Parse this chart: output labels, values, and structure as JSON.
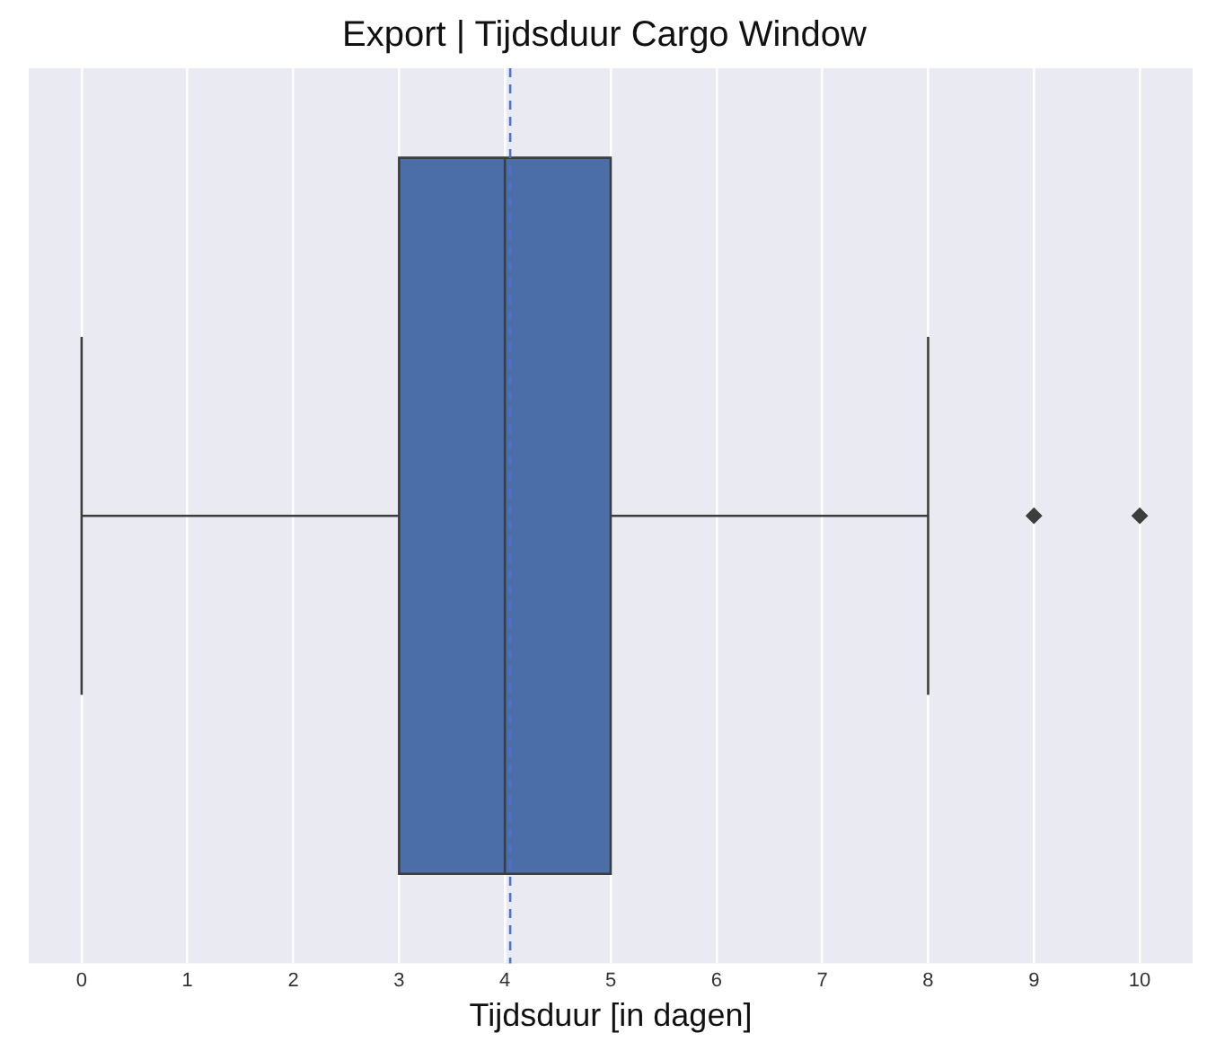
{
  "chart_data": {
    "type": "box",
    "title": "Export | Tijdsduur Cargo Window",
    "xlabel": "Tijdsduur [in dagen]",
    "orientation": "horizontal",
    "categories": [
      null
    ],
    "series": [
      {
        "color": "#4c6ea8",
        "boxes": [
          {
            "low": 0,
            "q1": 3,
            "median": 4,
            "q3": 5,
            "high": 8,
            "outliers": [
              9,
              10
            ]
          }
        ]
      }
    ],
    "xlim": [
      -0.5,
      10.5
    ],
    "xticks": [
      0,
      1,
      2,
      3,
      4,
      5,
      6,
      7,
      8,
      9,
      10
    ],
    "grid": "x",
    "marker": "diamond",
    "ref_lines": [
      {
        "axis": "x",
        "value": 4.05,
        "color": "#4c72d0",
        "line_style": "dashed"
      }
    ]
  }
}
